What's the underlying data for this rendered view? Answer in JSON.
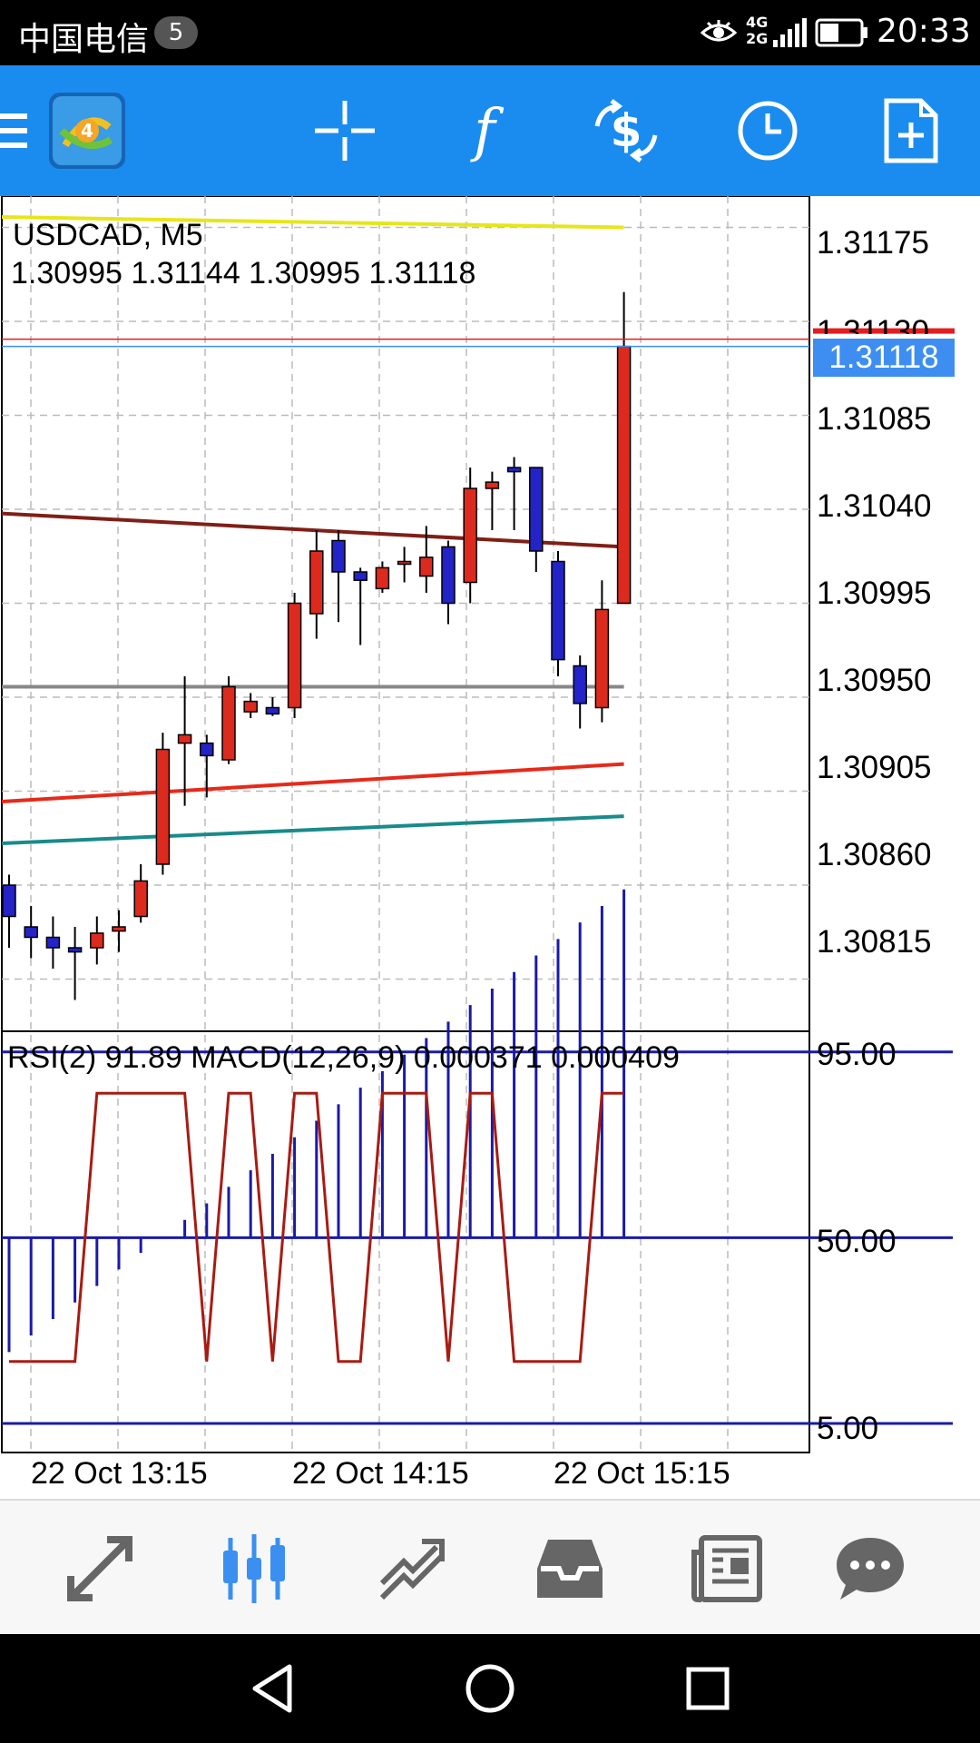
{
  "status_bar": {
    "carrier": "中国电信",
    "notification_count": "5",
    "network": "4G 2G",
    "time": "20:33"
  },
  "toolbar": {
    "icons": [
      "menu-icon",
      "mt4-app-icon",
      "crosshair-icon",
      "indicators-icon",
      "trade-icon",
      "timeframe-clock-icon",
      "new-document-icon"
    ]
  },
  "chart": {
    "symbol_label": "USDCAD, M5",
    "ohlc_label": "1.30995 1.31144 1.30995 1.31118",
    "indicator_label": "RSI(2) 91.89 MACD(12,26,9) 0.000371 0.000409",
    "current_price": "1.31118",
    "price_axis": [
      "1.31175",
      "1.31130",
      "1.31085",
      "1.31040",
      "1.30995",
      "1.30950",
      "1.30905",
      "1.30860",
      "1.30815"
    ],
    "indicator_axis": [
      "95.00",
      "50.00",
      "5.00"
    ],
    "time_axis": [
      "22 Oct 13:15",
      "22 Oct 14:15",
      "22 Oct 15:15"
    ]
  },
  "colors": {
    "toolbar_bg": "#1a8cf0",
    "bull_candle": "#2323c8",
    "bear_candle": "#dd2a1e",
    "current_price_bg": "#3d8ef0",
    "ask_line": "#e31e1e",
    "rsi_line": "#a81b12",
    "macd_signal": "#c8cc1a",
    "macd_histogram": "#1a1aa8"
  },
  "chart_data": {
    "type": "candlestick",
    "symbol": "USDCAD",
    "timeframe": "M5",
    "price_range": [
      1.3079,
      1.3119
    ],
    "candles": [
      {
        "o": 1.3086,
        "h": 1.30865,
        "l": 1.3083,
        "c": 1.30845
      },
      {
        "o": 1.3084,
        "h": 1.3085,
        "l": 1.30825,
        "c": 1.30835
      },
      {
        "o": 1.30835,
        "h": 1.30845,
        "l": 1.3082,
        "c": 1.3083
      },
      {
        "o": 1.3083,
        "h": 1.3084,
        "l": 1.30805,
        "c": 1.30828
      },
      {
        "o": 1.3083,
        "h": 1.30845,
        "l": 1.30822,
        "c": 1.30837
      },
      {
        "o": 1.30838,
        "h": 1.30848,
        "l": 1.30828,
        "c": 1.3084
      },
      {
        "o": 1.30845,
        "h": 1.3087,
        "l": 1.30842,
        "c": 1.30862
      },
      {
        "o": 1.3087,
        "h": 1.30933,
        "l": 1.30865,
        "c": 1.30925
      },
      {
        "o": 1.30928,
        "h": 1.3096,
        "l": 1.30898,
        "c": 1.30932
      },
      {
        "o": 1.30928,
        "h": 1.30932,
        "l": 1.30902,
        "c": 1.30922
      },
      {
        "o": 1.3092,
        "h": 1.3096,
        "l": 1.30918,
        "c": 1.30955
      },
      {
        "o": 1.30943,
        "h": 1.30952,
        "l": 1.3094,
        "c": 1.30948
      },
      {
        "o": 1.30945,
        "h": 1.3095,
        "l": 1.30941,
        "c": 1.30942
      },
      {
        "o": 1.30945,
        "h": 1.31,
        "l": 1.3094,
        "c": 1.30995
      },
      {
        "o": 1.3099,
        "h": 1.3103,
        "l": 1.30978,
        "c": 1.3102
      },
      {
        "o": 1.31025,
        "h": 1.3103,
        "l": 1.30986,
        "c": 1.3101
      },
      {
        "o": 1.3101,
        "h": 1.31012,
        "l": 1.30975,
        "c": 1.31006
      },
      {
        "o": 1.31002,
        "h": 1.31015,
        "l": 1.31,
        "c": 1.31012
      },
      {
        "o": 1.31015,
        "h": 1.31022,
        "l": 1.31005,
        "c": 1.31015
      },
      {
        "o": 1.31008,
        "h": 1.31032,
        "l": 1.31,
        "c": 1.31017
      },
      {
        "o": 1.31022,
        "h": 1.31025,
        "l": 1.30985,
        "c": 1.30995
      },
      {
        "o": 1.31005,
        "h": 1.3106,
        "l": 1.30995,
        "c": 1.3105
      },
      {
        "o": 1.3105,
        "h": 1.31058,
        "l": 1.3103,
        "c": 1.31053
      },
      {
        "o": 1.3106,
        "h": 1.31065,
        "l": 1.3103,
        "c": 1.31058
      },
      {
        "o": 1.3106,
        "h": 1.3106,
        "l": 1.3101,
        "c": 1.3102
      },
      {
        "o": 1.31015,
        "h": 1.3102,
        "l": 1.3096,
        "c": 1.30968
      },
      {
        "o": 1.30965,
        "h": 1.3097,
        "l": 1.30935,
        "c": 1.30947
      },
      {
        "o": 1.30945,
        "h": 1.31006,
        "l": 1.30938,
        "c": 1.30992
      },
      {
        "o": 1.30995,
        "h": 1.31144,
        "l": 1.30995,
        "c": 1.31118
      }
    ],
    "moving_averages": [
      {
        "color": "#7f1f17",
        "values": [
          1.31038,
          1.31022
        ]
      },
      {
        "color": "#e62a1a",
        "values": [
          1.309,
          1.30918
        ]
      },
      {
        "color": "#888888",
        "values": [
          1.30955,
          1.30955
        ]
      },
      {
        "color": "#1a8a8a",
        "values": [
          1.3088,
          1.30893
        ]
      },
      {
        "color": "#e6e61a",
        "values": [
          1.3118,
          1.31175
        ]
      }
    ],
    "indicator": {
      "rsi_period": 2,
      "rsi_value": 91.89,
      "macd": [
        12,
        26,
        9
      ],
      "macd_main": 0.000371,
      "macd_signal": 0.000409,
      "levels": [
        95,
        50,
        5
      ]
    }
  },
  "bottom_tabs": [
    {
      "name": "tab-quotes",
      "icon": "quotes-arrows-icon",
      "active": false
    },
    {
      "name": "tab-chart",
      "icon": "candlestick-icon",
      "active": true
    },
    {
      "name": "tab-trade",
      "icon": "trade-trend-icon",
      "active": false
    },
    {
      "name": "tab-history",
      "icon": "inbox-tray-icon",
      "active": false
    },
    {
      "name": "tab-news",
      "icon": "newspaper-icon",
      "active": false
    },
    {
      "name": "tab-chat",
      "icon": "chat-bubble-icon",
      "active": false
    }
  ],
  "navbar": [
    "back-icon",
    "home-icon",
    "recents-icon"
  ]
}
